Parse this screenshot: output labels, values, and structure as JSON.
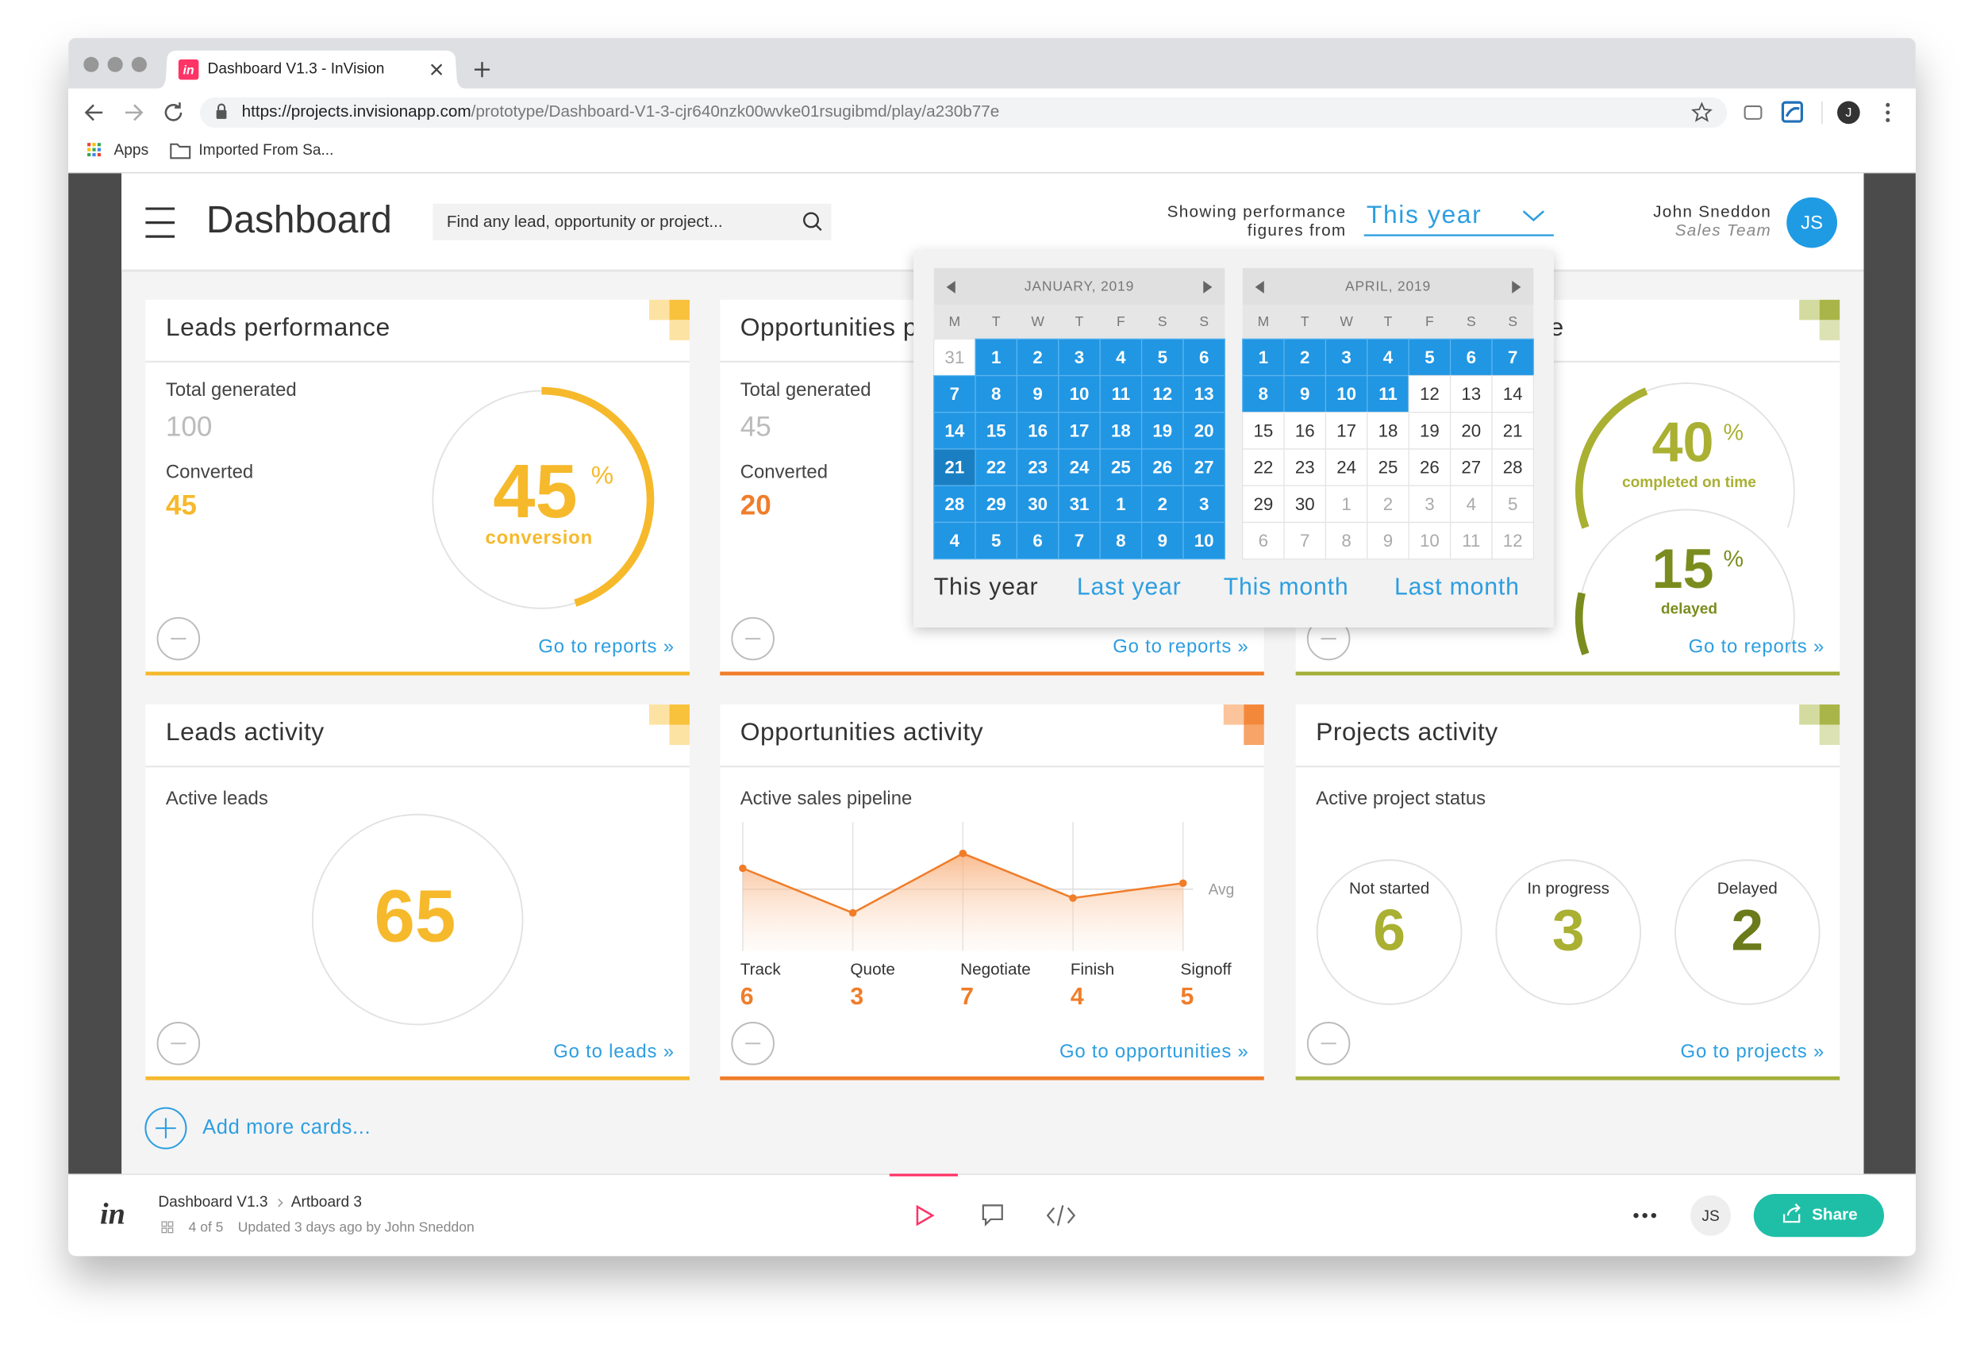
{
  "browser": {
    "tab_icon": "in",
    "tab_title": "Dashboard V1.3 - InVision",
    "url_host": "https://projects.invisionapp.com",
    "url_path": "/prototype/Dashboard-V1-3-cjr640nzk00wvke01rsugibmd/play/a230b77e",
    "profile": "J",
    "bookmarks": [
      "Apps",
      "Imported From Sa..."
    ]
  },
  "header": {
    "title": "Dashboard",
    "search_placeholder": "Find any lead, opportunity or project...",
    "period_label": [
      "Showing performance",
      "figures from"
    ],
    "period": "This year",
    "user_name": "John Sneddon",
    "user_role": "Sales Team",
    "user_initials": "JS"
  },
  "calendar": {
    "months": [
      {
        "title": "JANUARY, 2019",
        "weekdays": [
          "M",
          "T",
          "W",
          "T",
          "F",
          "S",
          "S"
        ],
        "weeks": [
          [
            31,
            1,
            2,
            3,
            4,
            5,
            6
          ],
          [
            7,
            8,
            9,
            10,
            11,
            12,
            13
          ],
          [
            14,
            15,
            16,
            17,
            18,
            19,
            20
          ],
          [
            21,
            22,
            23,
            24,
            25,
            26,
            27
          ],
          [
            28,
            29,
            30,
            31,
            1,
            2,
            3
          ],
          [
            4,
            5,
            6,
            7,
            8,
            9,
            10
          ]
        ]
      },
      {
        "title": "APRIL, 2019",
        "weekdays": [
          "M",
          "T",
          "W",
          "T",
          "F",
          "S",
          "S"
        ],
        "weeks": [
          [
            1,
            2,
            3,
            4,
            5,
            6,
            7
          ],
          [
            8,
            9,
            10,
            11,
            12,
            13,
            14
          ],
          [
            15,
            16,
            17,
            18,
            19,
            20,
            21
          ],
          [
            22,
            23,
            24,
            25,
            26,
            27,
            28
          ],
          [
            29,
            30,
            1,
            2,
            3,
            4,
            5
          ],
          [
            6,
            7,
            8,
            9,
            10,
            11,
            12
          ]
        ]
      }
    ],
    "presets": [
      "This year",
      "Last year",
      "This month",
      "Last month"
    ]
  },
  "cards": [
    {
      "title": "Leads performance",
      "total_label": "Total generated",
      "total": 100,
      "converted_label": "Converted",
      "converted": 45,
      "gauge": {
        "value": 45,
        "unit": "%",
        "label": "conversion"
      },
      "link": "Go to reports »"
    },
    {
      "title": "Opportunities performance",
      "total_label": "Total generated",
      "total": 45,
      "converted_label": "Converted",
      "converted": 20,
      "link": "Go to reports »"
    },
    {
      "title": "Projects performance",
      "gauges": [
        {
          "value": 40,
          "unit": "%",
          "label": "completed on time"
        },
        {
          "value": 15,
          "unit": "%",
          "label": "delayed"
        }
      ],
      "link": "Go to reports »"
    },
    {
      "title": "Leads activity",
      "subtitle": "Active leads",
      "value": 65,
      "link": "Go to leads »"
    },
    {
      "title": "Opportunities activity",
      "subtitle": "Active sales pipeline",
      "categories": [
        "Track",
        "Quote",
        "Negotiate",
        "Finish",
        "Signoff"
      ],
      "values": [
        6,
        3,
        7,
        4,
        5
      ],
      "avg_label": "Avg",
      "link": "Go to opportunities »"
    },
    {
      "title": "Projects activity",
      "subtitle": "Active project status",
      "statuses": [
        {
          "label": "Not started",
          "value": 6
        },
        {
          "label": "In progress",
          "value": 3
        },
        {
          "label": "Delayed",
          "value": 2
        }
      ],
      "link": "Go to projects »"
    }
  ],
  "add_cards": "Add more cards...",
  "footer": {
    "logo": "in",
    "project": "Dashboard V1.3",
    "screen": "Artboard 3",
    "position": "4 of 5",
    "updated": "Updated 3 days ago by John Sneddon",
    "user_initials": "JS",
    "share": "Share"
  }
}
